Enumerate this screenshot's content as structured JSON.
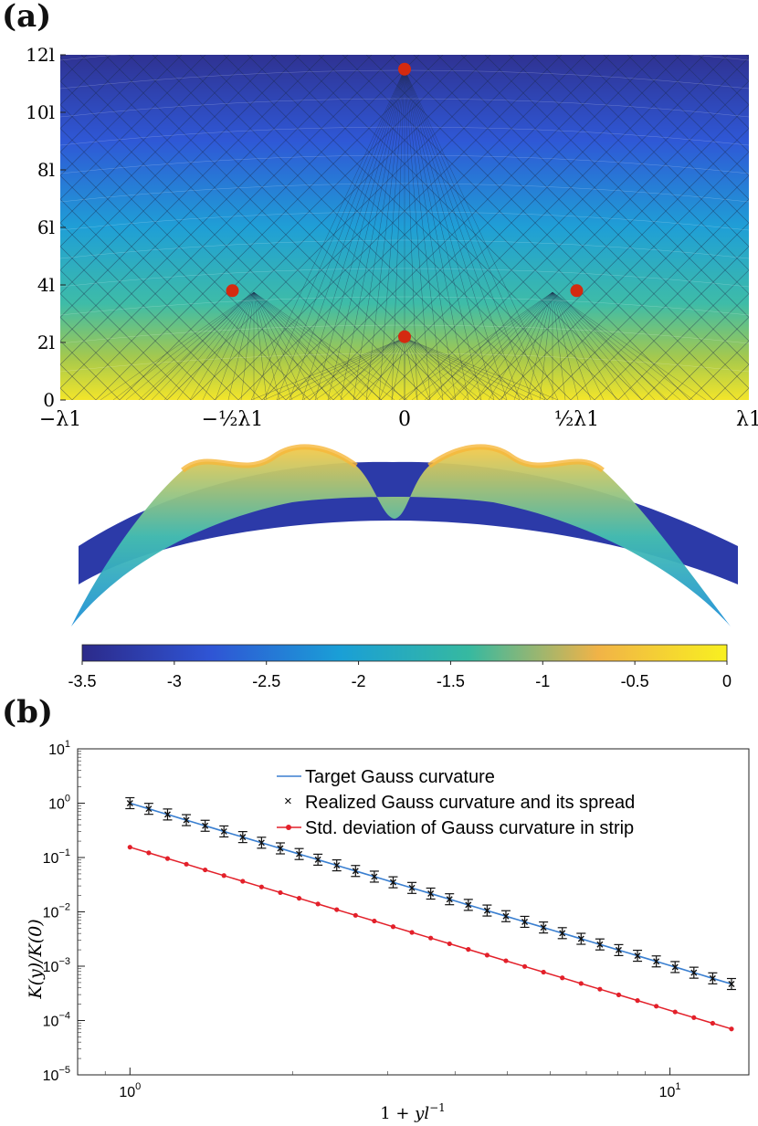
{
  "labels": {
    "panel_a": "(a)",
    "panel_b": "(b)"
  },
  "chart_data": [
    {
      "type": "heatmap",
      "panel": "(a)",
      "y_ticks": [
        "0",
        "2l",
        "4l",
        "6l",
        "8l",
        "10l",
        "12l"
      ],
      "x_ticks": [
        "−λ1",
        "−½λ1",
        "0",
        "½λ1",
        "λ1"
      ],
      "points": [
        {
          "x": 0,
          "y": 11.5
        },
        {
          "x": -0.5,
          "y": 3.8
        },
        {
          "x": 0.5,
          "y": 3.8
        },
        {
          "x": 0,
          "y": 2.2
        }
      ],
      "point_color": "#d42a10",
      "colors": {
        "low": "#3b3a9f",
        "mid": "#1fa8c9",
        "high": "#f7e62a"
      }
    },
    {
      "type": "colorbar",
      "ticks": [
        "-3.5",
        "-3",
        "-2.5",
        "-2",
        "-1.5",
        "-1",
        "-0.5",
        "0"
      ],
      "range": [
        -3.5,
        0
      ]
    },
    {
      "type": "line",
      "panel": "(b)",
      "xlabel": "1 + yl^{-1}",
      "ylabel": "K(y)/K(0)",
      "xscale": "log",
      "yscale": "log",
      "xlim": [
        0.8,
        14
      ],
      "ylim": [
        1e-05,
        10
      ],
      "x_ticks": [
        {
          "base": "10",
          "exp": "0"
        },
        {
          "base": "10",
          "exp": "1"
        }
      ],
      "y_ticks": [
        {
          "base": "10",
          "exp": "1"
        },
        {
          "base": "10",
          "exp": "0"
        },
        {
          "base": "10",
          "exp": "-1"
        },
        {
          "base": "10",
          "exp": "-2"
        },
        {
          "base": "10",
          "exp": "-3"
        },
        {
          "base": "10",
          "exp": "-4"
        },
        {
          "base": "10",
          "exp": "-5"
        }
      ],
      "legend_position": "top-right",
      "series": [
        {
          "name": "Target Gauss curvature",
          "color": "#3a7fd0",
          "x_range": [
            1,
            13
          ],
          "y_range": [
            1.0,
            0.00047
          ]
        },
        {
          "name": "Realized Gauss curvature and its spread",
          "color": "#000000",
          "x_range": [
            1,
            13
          ],
          "y_range": [
            1.0,
            0.00047
          ],
          "points": 33
        },
        {
          "name": "Std. deviation of Gauss curvature in strip",
          "color": "#e3202a",
          "x_range": [
            1,
            13
          ],
          "y_range": [
            0.155,
            7e-05
          ],
          "points": 33
        }
      ]
    }
  ]
}
